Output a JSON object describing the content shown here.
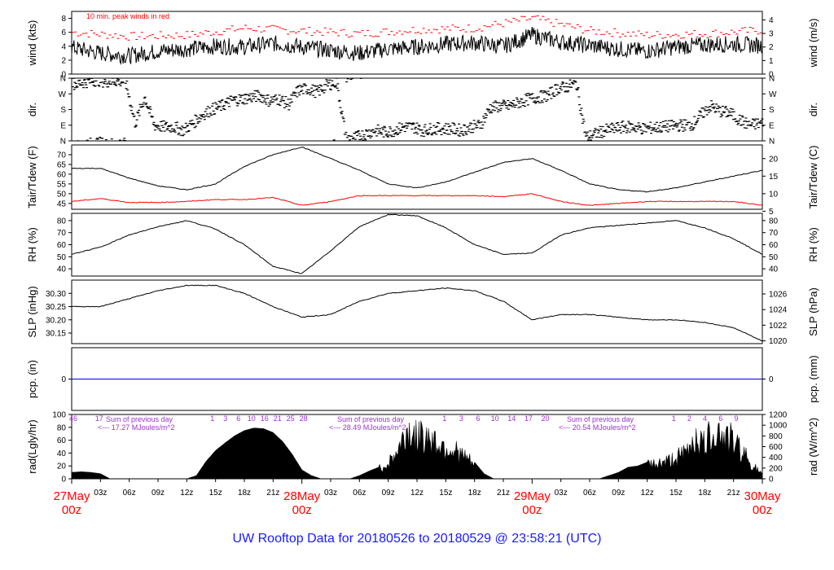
{
  "caption": "UW Rooftop Data for 20180526  to  20180529 @ 23:58:21  (UTC)",
  "colors": {
    "series": "#000000",
    "peak": "#ff0000",
    "dewpoint": "#ff0000",
    "precip": "#0000cc",
    "rad_labels": "#9933cc",
    "date": "#ff0000",
    "caption": "#1a1aff"
  },
  "time_axis": {
    "hour_ticks": [
      "03z",
      "06z",
      "09z",
      "12z",
      "15z",
      "18z",
      "21z",
      "03z",
      "06z",
      "09z",
      "12z",
      "15z",
      "18z",
      "21z",
      "03z",
      "06z",
      "09z",
      "12z",
      "15z",
      "18z",
      "21z"
    ],
    "day_labels": [
      {
        "date": "27May",
        "time": "00z"
      },
      {
        "date": "28May",
        "time": "00z"
      },
      {
        "date": "29May",
        "time": "00z"
      },
      {
        "date": "30May",
        "time": "00z"
      }
    ]
  },
  "panels": {
    "wind": {
      "ylabel_left": "wind (kts)",
      "ylabel_right": "wind (m/s)",
      "left_ticks": [
        "0",
        "2",
        "4",
        "6",
        "8"
      ],
      "right_ticks": [
        "0",
        "1",
        "2",
        "3",
        "4"
      ],
      "note": "10 min. peak winds in red"
    },
    "dir": {
      "ylabel_left": "dir.",
      "ylabel_right": "dir.",
      "ticks": [
        "N",
        "E",
        "S",
        "W",
        "N"
      ]
    },
    "temp": {
      "ylabel_left": "Tair/Tdew (F)",
      "ylabel_right": "Tair/Tdew (C)",
      "left_ticks": [
        "45",
        "50",
        "55",
        "60",
        "65",
        "70"
      ],
      "right_ticks": [
        "5",
        "10",
        "15",
        "20"
      ]
    },
    "rh": {
      "ylabel_left": "RH (%)",
      "ylabel_right": "RH (%)",
      "left_ticks": [
        "40",
        "50",
        "60",
        "70",
        "80"
      ],
      "right_ticks": [
        "40",
        "50",
        "60",
        "70",
        "80"
      ]
    },
    "slp": {
      "ylabel_left": "SLP (inHg)",
      "ylabel_right": "SLP (hPa)",
      "left_ticks": [
        "30.15",
        "30.20",
        "30.25",
        "30.30"
      ],
      "right_ticks": [
        "1020",
        "1022",
        "1024",
        "1026"
      ]
    },
    "pcp": {
      "ylabel_left": "pcp. (in)",
      "ylabel_right": "pcp. (mm)",
      "left_ticks": [
        "0"
      ],
      "right_ticks": [
        "0"
      ]
    },
    "rad": {
      "ylabel_left": "rad(Lgly/hr)",
      "ylabel_right": "rad (W/m^2)",
      "left_ticks": [
        "0",
        "20",
        "40",
        "60",
        "80",
        "100"
      ],
      "right_ticks": [
        "0",
        "200",
        "400",
        "600",
        "800",
        "1000",
        "1200"
      ],
      "daily_notes": [
        {
          "title": "Sum of previous day",
          "total": "<--- 17.27 MJoules/m^2"
        },
        {
          "title": "Sum of previous day",
          "total": "<--- 28.49 MJoules/m^2"
        },
        {
          "title": "Sum of previous day",
          "total": "<--- 20.54 MJoules/m^2"
        }
      ],
      "cumulative_marks": [
        {
          "day": 0,
          "labels": [
            "46",
            "17"
          ]
        },
        {
          "day": 1,
          "labels": [
            "1",
            "3",
            "6",
            "10",
            "16",
            "21",
            "25",
            "28"
          ]
        },
        {
          "day": 2,
          "labels": [
            "1",
            "3",
            "6",
            "10",
            "14",
            "17",
            "20"
          ]
        },
        {
          "day": 3,
          "labels": [
            "1",
            "2",
            "4",
            "6",
            "9"
          ]
        }
      ]
    }
  },
  "chart_data": {
    "type": "line",
    "x_unit": "hours since 27May 00z",
    "x_range": [
      0,
      72
    ],
    "series": [
      {
        "panel": "wind",
        "name": "10 min. peak winds",
        "style": "dash-red",
        "x": [
          0,
          6,
          12,
          18,
          24,
          30,
          36,
          42,
          48,
          54,
          60,
          66,
          72
        ],
        "values": [
          6.0,
          5.4,
          5.6,
          6.6,
          6.2,
          5.8,
          6.4,
          6.6,
          8.0,
          6.2,
          5.6,
          5.8,
          6.3
        ]
      },
      {
        "panel": "wind",
        "style": "line-black-noisy",
        "x": [
          0,
          3,
          6,
          9,
          12,
          15,
          18,
          21,
          24,
          27,
          30,
          33,
          36,
          39,
          42,
          45,
          48,
          51,
          54,
          57,
          60,
          63,
          66,
          69,
          72
        ],
        "values": [
          3.8,
          3.0,
          2.6,
          3.3,
          3.6,
          4.0,
          3.9,
          4.4,
          3.9,
          3.4,
          3.0,
          3.6,
          3.9,
          4.3,
          4.5,
          4.0,
          5.6,
          4.6,
          4.1,
          3.6,
          3.3,
          3.9,
          4.2,
          4.3,
          4.1
        ]
      },
      {
        "panel": "dir",
        "style": "dash-black",
        "x": [
          0.5,
          1.5,
          2.5,
          3.5,
          4.5,
          5.5,
          6.5,
          7.5,
          8.5,
          9.5,
          10.5,
          11.5,
          12.5,
          13.5,
          14.5,
          15.5,
          16.5,
          17.5,
          18.5,
          19.5,
          20.5,
          21.5,
          22.5,
          23.5,
          24.5,
          25.5,
          26.5,
          27.5,
          28.5,
          29.5,
          30.5,
          31.5,
          32.5,
          33.5,
          34.5,
          35.5,
          36.5,
          37.5,
          38.5,
          39.5,
          40.5,
          41.5,
          42.5,
          43.5,
          44.5,
          45.5,
          46.5,
          47.5,
          48.5,
          49.5,
          50.5,
          51.5,
          52.5,
          53.5,
          54.5,
          55.5,
          56.5,
          57.5,
          58.5,
          59.5,
          60.5,
          61.5,
          62.5,
          63.5,
          64.5,
          65.5,
          66.5,
          67.5,
          68.5,
          69.5,
          70.5,
          71.5
        ],
        "values": [
          330,
          340,
          350,
          340,
          345,
          340,
          100,
          250,
          90,
          80,
          80,
          60,
          100,
          150,
          180,
          200,
          230,
          240,
          250,
          260,
          230,
          240,
          210,
          290,
          300,
          280,
          320,
          340,
          10,
          20,
          40,
          60,
          50,
          60,
          80,
          80,
          60,
          70,
          70,
          70,
          60,
          80,
          90,
          190,
          200,
          200,
          220,
          240,
          250,
          260,
          300,
          310,
          330,
          20,
          40,
          60,
          70,
          80,
          80,
          70,
          75,
          80,
          85,
          90,
          90,
          150,
          200,
          170,
          160,
          120,
          90,
          100
        ]
      },
      {
        "panel": "temp",
        "name": "Tair",
        "style": "line-black",
        "x": [
          0,
          3,
          6,
          9,
          12,
          15,
          18,
          21,
          24,
          27,
          30,
          33,
          36,
          39,
          42,
          45,
          48,
          51,
          54,
          57,
          60,
          63,
          66,
          69,
          72
        ],
        "values": [
          63,
          63,
          58,
          54,
          52,
          55,
          64,
          70,
          74,
          68,
          62,
          55,
          53,
          56,
          61,
          66,
          68,
          62,
          55,
          52,
          51,
          53,
          56,
          59,
          62
        ]
      },
      {
        "panel": "temp",
        "name": "Tdew",
        "style": "line-red",
        "x": [
          0,
          3,
          6,
          9,
          12,
          15,
          18,
          21,
          24,
          27,
          30,
          33,
          36,
          39,
          42,
          45,
          48,
          51,
          54,
          57,
          60,
          63,
          66,
          69,
          72
        ],
        "values": [
          46,
          47.5,
          45.5,
          45.5,
          46,
          47,
          47,
          48,
          44,
          46,
          49,
          49,
          49,
          49,
          49,
          48.5,
          50,
          46,
          44,
          45,
          46,
          46,
          46,
          46,
          44
        ]
      },
      {
        "panel": "rh",
        "style": "line-black",
        "x": [
          0,
          3,
          6,
          9,
          12,
          15,
          18,
          21,
          24,
          27,
          30,
          33,
          36,
          39,
          42,
          45,
          48,
          51,
          54,
          57,
          60,
          63,
          66,
          69,
          72
        ],
        "values": [
          52,
          58,
          68,
          75,
          80,
          73,
          60,
          42,
          36,
          55,
          75,
          85,
          84,
          74,
          60,
          52,
          53,
          68,
          74,
          76,
          78,
          80,
          74,
          65,
          52
        ]
      },
      {
        "panel": "slp",
        "style": "line-black",
        "x": [
          0,
          3,
          6,
          9,
          12,
          15,
          18,
          21,
          24,
          27,
          30,
          33,
          36,
          39,
          42,
          45,
          48,
          51,
          54,
          57,
          60,
          63,
          66,
          69,
          72
        ],
        "values": [
          30.25,
          30.25,
          30.28,
          30.31,
          30.33,
          30.33,
          30.3,
          30.25,
          30.21,
          30.22,
          30.27,
          30.3,
          30.31,
          30.32,
          30.31,
          30.27,
          30.2,
          30.22,
          30.22,
          30.21,
          30.2,
          30.2,
          30.19,
          30.17,
          30.12
        ]
      },
      {
        "panel": "pcp",
        "style": "line-blue",
        "x": [
          0,
          72
        ],
        "values": [
          0,
          0
        ]
      },
      {
        "panel": "rad",
        "style": "fill-black",
        "x": [
          0,
          1,
          2,
          3,
          4,
          5,
          6,
          7,
          12,
          13,
          14,
          15,
          16,
          17,
          18,
          19,
          20,
          21,
          22,
          23,
          24,
          25,
          26,
          29,
          30,
          31,
          32,
          33,
          34,
          35,
          36,
          37,
          38,
          39,
          40,
          41,
          42,
          43,
          44,
          45,
          46,
          47,
          48,
          49,
          50,
          55,
          56,
          57,
          58,
          59,
          60,
          61,
          62,
          63,
          64,
          65,
          66,
          67,
          68,
          69,
          70,
          71,
          72
        ],
        "values": [
          10,
          11,
          10,
          8,
          0,
          0,
          0,
          0,
          0,
          5,
          27,
          44,
          56,
          67,
          75,
          79,
          78,
          72,
          58,
          38,
          14,
          5,
          0,
          0,
          5,
          12,
          18,
          28,
          52,
          90,
          75,
          80,
          68,
          60,
          52,
          40,
          26,
          8,
          0,
          0,
          0,
          0,
          0,
          0,
          0,
          0,
          5,
          10,
          18,
          20,
          26,
          28,
          32,
          38,
          48,
          80,
          62,
          95,
          80,
          70,
          50,
          25,
          8
        ]
      }
    ]
  }
}
